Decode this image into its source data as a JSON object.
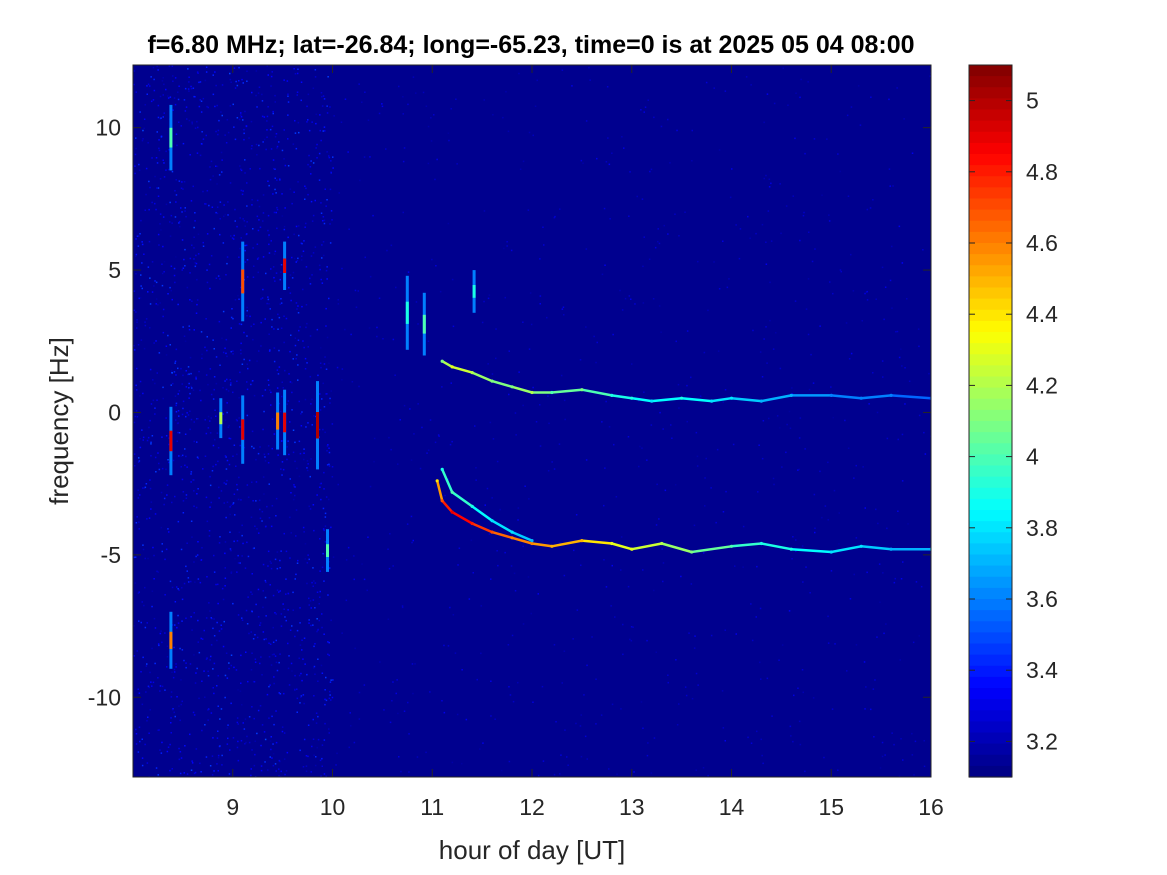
{
  "chart_data": {
    "type": "heatmap",
    "title": "f=6.80 MHz;  lat=-26.84; long=-65.23, time=0 is at 2025 05 04 08:00",
    "xlabel": "hour of day [UT]",
    "ylabel": "frequency [Hz]",
    "xlim": [
      8.0,
      16.0
    ],
    "ylim": [
      -12.8,
      12.2
    ],
    "x_ticks": [
      9,
      10,
      11,
      12,
      13,
      14,
      15,
      16
    ],
    "y_ticks": [
      -10,
      -5,
      0,
      5,
      10
    ],
    "colormap": "jet",
    "colorbar": {
      "clim": [
        3.1,
        5.1
      ],
      "ticks": [
        3.2,
        3.4,
        3.6,
        3.8,
        4,
        4.2,
        4.4,
        4.6,
        4.8,
        5
      ]
    },
    "background_value": 3.15,
    "series": [
      {
        "x": [
          11.1,
          11.2,
          11.4,
          11.6,
          11.8,
          12.0,
          12.2,
          12.5,
          12.8,
          13.0,
          13.2,
          13.5,
          13.8,
          14.0,
          14.3,
          14.6,
          15.0,
          15.3,
          15.6,
          16.0
        ],
        "y": [
          1.8,
          1.6,
          1.4,
          1.1,
          0.9,
          0.7,
          0.7,
          0.8,
          0.6,
          0.5,
          0.4,
          0.5,
          0.4,
          0.5,
          0.4,
          0.6,
          0.6,
          0.5,
          0.6,
          0.5
        ],
        "values": [
          4.1,
          4.3,
          4.2,
          4.1,
          4.1,
          4.2,
          4.0,
          4.1,
          3.9,
          3.9,
          3.8,
          3.9,
          3.8,
          3.8,
          3.7,
          3.7,
          3.6,
          3.6,
          3.6,
          3.5
        ]
      },
      {
        "x": [
          11.05,
          11.1,
          11.2,
          11.4,
          11.6,
          11.8,
          12.0,
          12.2,
          12.5,
          12.8,
          13.0,
          13.3,
          13.6,
          14.0,
          14.3,
          14.6,
          15.0,
          15.3,
          15.6,
          16.0
        ],
        "y": [
          -2.4,
          -3.1,
          -3.5,
          -3.9,
          -4.2,
          -4.4,
          -4.6,
          -4.7,
          -4.5,
          -4.6,
          -4.8,
          -4.6,
          -4.9,
          -4.7,
          -4.6,
          -4.8,
          -4.9,
          -4.7,
          -4.8,
          -4.8
        ],
        "values": [
          4.4,
          4.7,
          4.9,
          4.8,
          4.7,
          4.6,
          4.6,
          4.5,
          4.5,
          4.3,
          4.3,
          4.2,
          4.1,
          4.0,
          3.9,
          3.9,
          3.8,
          3.8,
          3.7,
          3.7
        ]
      },
      {
        "x": [
          11.1,
          11.2,
          11.4,
          11.6,
          11.8,
          12.0
        ],
        "y": [
          -2.0,
          -2.8,
          -3.3,
          -3.8,
          -4.2,
          -4.5
        ],
        "values": [
          3.9,
          4.0,
          3.9,
          3.8,
          3.8,
          3.7
        ]
      }
    ],
    "vertical_streaks": [
      {
        "x": 8.38,
        "y0": -2.2,
        "y1": 0.2,
        "peak": 4.9
      },
      {
        "x": 8.38,
        "y0": 8.5,
        "y1": 10.8,
        "peak": 4.0
      },
      {
        "x": 8.38,
        "y0": -9.0,
        "y1": -7.0,
        "peak": 4.6
      },
      {
        "x": 8.88,
        "y0": -0.9,
        "y1": 0.5,
        "peak": 4.2
      },
      {
        "x": 9.1,
        "y0": -1.8,
        "y1": 0.6,
        "peak": 4.9
      },
      {
        "x": 9.1,
        "y0": 3.2,
        "y1": 6.0,
        "peak": 4.7
      },
      {
        "x": 9.45,
        "y0": -1.3,
        "y1": 0.7,
        "peak": 4.6
      },
      {
        "x": 9.52,
        "y0": -1.5,
        "y1": 0.8,
        "peak": 4.9
      },
      {
        "x": 9.52,
        "y0": 4.3,
        "y1": 6.0,
        "peak": 4.9
      },
      {
        "x": 9.85,
        "y0": -2.0,
        "y1": 1.1,
        "peak": 5.0
      },
      {
        "x": 9.95,
        "y0": -5.6,
        "y1": -4.1,
        "peak": 4.0
      },
      {
        "x": 10.75,
        "y0": 2.2,
        "y1": 4.8,
        "peak": 3.9
      },
      {
        "x": 10.92,
        "y0": 2.0,
        "y1": 4.2,
        "peak": 4.0
      },
      {
        "x": 11.42,
        "y0": 3.5,
        "y1": 5.0,
        "peak": 3.9
      }
    ]
  }
}
